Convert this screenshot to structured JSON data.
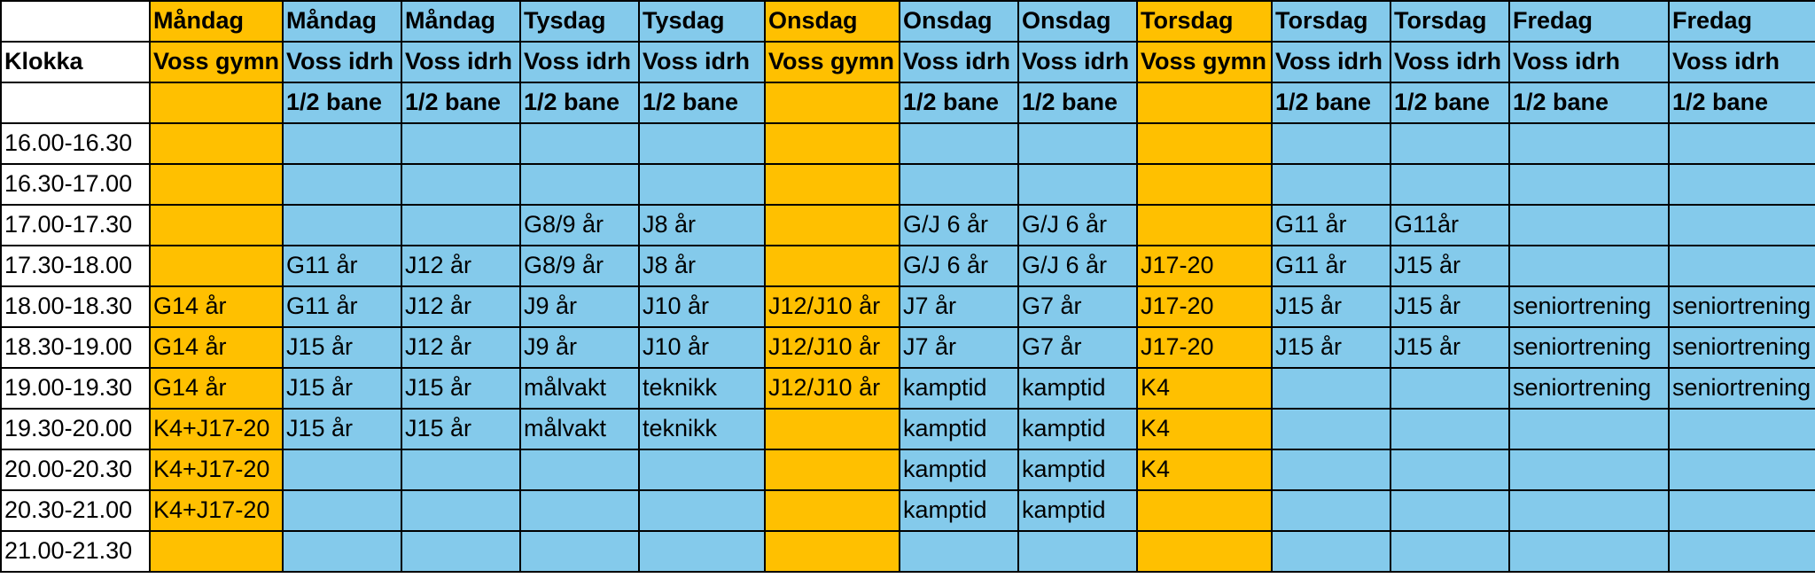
{
  "columns": [
    {
      "type": "time"
    },
    {
      "color": "yellow"
    },
    {
      "color": "blue"
    },
    {
      "color": "blue"
    },
    {
      "color": "blue"
    },
    {
      "color": "blue"
    },
    {
      "color": "yellow"
    },
    {
      "color": "blue"
    },
    {
      "color": "blue"
    },
    {
      "color": "yellow"
    },
    {
      "color": "blue"
    },
    {
      "color": "blue"
    },
    {
      "color": "blue"
    },
    {
      "color": "blue"
    }
  ],
  "colors": {
    "yellow": "#ffc000",
    "blue": "#84caeb",
    "white": "#ffffff",
    "border": "#000000"
  },
  "header": {
    "days": [
      "",
      "Måndag",
      "Måndag",
      "Måndag",
      "Tysdag",
      "Tysdag",
      "Onsdag",
      "Onsdag",
      "Onsdag",
      "Torsdag",
      "Torsdag",
      "Torsdag",
      "Fredag",
      "Fredag"
    ],
    "venues": [
      "Klokka",
      "Voss gymn",
      "Voss idrh",
      "Voss idrh",
      "Voss idrh",
      "Voss idrh",
      "Voss gymn",
      "Voss idrh",
      "Voss idrh",
      "Voss gymn",
      "Voss idrh",
      "Voss idrh",
      "Voss idrh",
      "Voss idrh"
    ],
    "courts": [
      "",
      "",
      "1/2 bane",
      "1/2 bane",
      "1/2 bane",
      "1/2 bane",
      "",
      "1/2 bane",
      "1/2 bane",
      "",
      "1/2 bane",
      "1/2 bane",
      "1/2 bane",
      "1/2 bane"
    ]
  },
  "rows": [
    {
      "time": "16.00-16.30",
      "cells": [
        "",
        "",
        "",
        "",
        "",
        "",
        "",
        "",
        "",
        "",
        "",
        "",
        ""
      ]
    },
    {
      "time": "16.30-17.00",
      "cells": [
        "",
        "",
        "",
        "",
        "",
        "",
        "",
        "",
        "",
        "",
        "",
        "",
        ""
      ]
    },
    {
      "time": "17.00-17.30",
      "cells": [
        "",
        "",
        "",
        "G8/9 år",
        "J8 år",
        "",
        "G/J 6 år",
        "G/J 6 år",
        "",
        "G11 år",
        "G11år",
        "",
        ""
      ]
    },
    {
      "time": "17.30-18.00",
      "cells": [
        "",
        "G11 år",
        "J12 år",
        "G8/9 år",
        "J8 år",
        "",
        "G/J 6 år",
        "G/J 6 år",
        "J17-20",
        "G11 år",
        "J15 år",
        "",
        ""
      ]
    },
    {
      "time": "18.00-18.30",
      "cells": [
        "G14 år",
        "G11 år",
        "J12 år",
        "J9 år",
        "J10 år",
        "J12/J10 år",
        "J7 år",
        "G7 år",
        "J17-20",
        "J15 år",
        "J15 år",
        "seniortrening",
        "seniortrening"
      ]
    },
    {
      "time": "18.30-19.00",
      "cells": [
        "G14 år",
        "J15 år",
        "J12 år",
        "J9 år",
        "J10 år",
        "J12/J10 år",
        "J7 år",
        "G7 år",
        "J17-20",
        "J15 år",
        "J15 år",
        "seniortrening",
        "seniortrening"
      ]
    },
    {
      "time": "19.00-19.30",
      "cells": [
        "G14 år",
        "J15 år",
        "J15 år",
        "målvakt",
        "teknikk",
        "J12/J10 år",
        "kamptid",
        "kamptid",
        "K4",
        "",
        "",
        "seniortrening",
        "seniortrening"
      ]
    },
    {
      "time": "19.30-20.00",
      "cells": [
        "K4+J17-20",
        "J15 år",
        "J15 år",
        "målvakt",
        "teknikk",
        "",
        "kamptid",
        "kamptid",
        "K4",
        "",
        "",
        "",
        ""
      ]
    },
    {
      "time": "20.00-20.30",
      "cells": [
        "K4+J17-20",
        "",
        "",
        "",
        "",
        "",
        "kamptid",
        "kamptid",
        "K4",
        "",
        "",
        "",
        ""
      ]
    },
    {
      "time": "20.30-21.00",
      "cells": [
        "K4+J17-20",
        "",
        "",
        "",
        "",
        "",
        "kamptid",
        "kamptid",
        "",
        "",
        "",
        "",
        ""
      ]
    },
    {
      "time": "21.00-21.30",
      "cells": [
        "",
        "",
        "",
        "",
        "",
        "",
        "",
        "",
        "",
        "",
        "",
        "",
        ""
      ]
    }
  ]
}
